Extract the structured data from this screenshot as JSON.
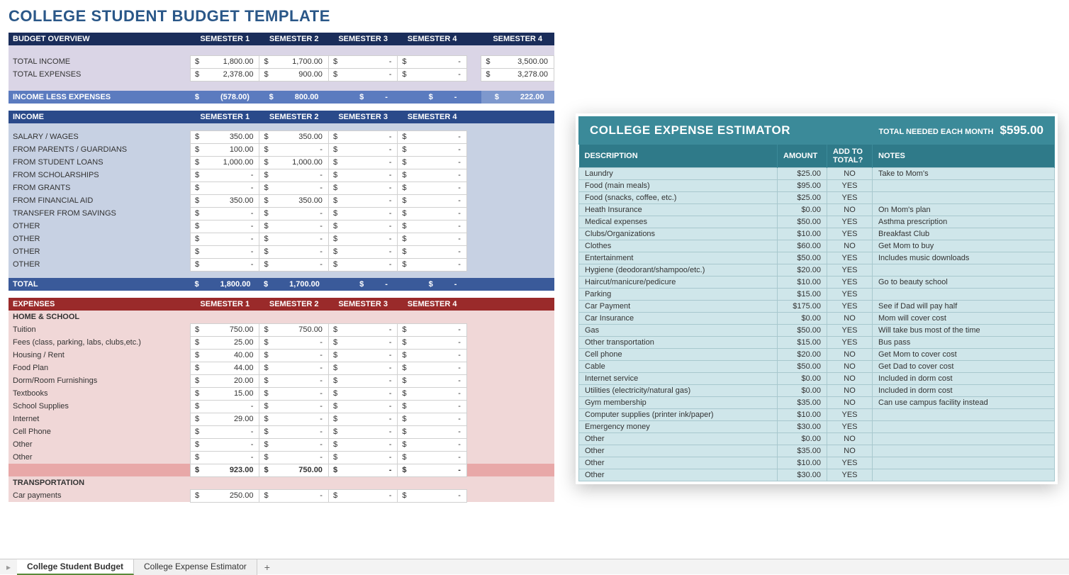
{
  "page_title": "COLLEGE STUDENT BUDGET TEMPLATE",
  "sem_labels": [
    "SEMESTER 1",
    "SEMESTER 2",
    "SEMESTER 3",
    "SEMESTER 4"
  ],
  "overview": {
    "hdr": "BUDGET OVERVIEW",
    "extra_col": "SEMESTER 4",
    "rows": [
      {
        "label": "TOTAL INCOME",
        "vals": [
          "1,800.00",
          "1,700.00",
          "-",
          "-"
        ],
        "ex": "3,500.00"
      },
      {
        "label": "TOTAL EXPENSES",
        "vals": [
          "2,378.00",
          "900.00",
          "-",
          "-"
        ],
        "ex": "3,278.00"
      }
    ],
    "ile": {
      "label": "INCOME LESS EXPENSES",
      "vals": [
        "(578.00)",
        "800.00",
        "-",
        "-"
      ],
      "ex": "222.00"
    }
  },
  "income": {
    "hdr": "INCOME",
    "rows": [
      {
        "label": "SALARY / WAGES",
        "vals": [
          "350.00",
          "350.00",
          "-",
          "-"
        ]
      },
      {
        "label": "FROM PARENTS / GUARDIANS",
        "vals": [
          "100.00",
          "-",
          "-",
          "-"
        ]
      },
      {
        "label": "FROM STUDENT LOANS",
        "vals": [
          "1,000.00",
          "1,000.00",
          "-",
          "-"
        ]
      },
      {
        "label": "FROM SCHOLARSHIPS",
        "vals": [
          "-",
          "-",
          "-",
          "-"
        ]
      },
      {
        "label": "FROM GRANTS",
        "vals": [
          "-",
          "-",
          "-",
          "-"
        ]
      },
      {
        "label": "FROM FINANCIAL AID",
        "vals": [
          "350.00",
          "350.00",
          "-",
          "-"
        ]
      },
      {
        "label": "TRANSFER FROM SAVINGS",
        "vals": [
          "-",
          "-",
          "-",
          "-"
        ]
      },
      {
        "label": "OTHER",
        "vals": [
          "-",
          "-",
          "-",
          "-"
        ]
      },
      {
        "label": "OTHER",
        "vals": [
          "-",
          "-",
          "-",
          "-"
        ]
      },
      {
        "label": "OTHER",
        "vals": [
          "-",
          "-",
          "-",
          "-"
        ]
      },
      {
        "label": "OTHER",
        "vals": [
          "-",
          "-",
          "-",
          "-"
        ]
      }
    ],
    "total": {
      "label": "TOTAL",
      "vals": [
        "1,800.00",
        "1,700.00",
        "-",
        "-"
      ]
    }
  },
  "expenses": {
    "hdr": "EXPENSES",
    "cat1": "HOME & SCHOOL",
    "rows": [
      {
        "label": "Tuition",
        "vals": [
          "750.00",
          "750.00",
          "-",
          "-"
        ]
      },
      {
        "label": "Fees (class, parking, labs, clubs,etc.)",
        "vals": [
          "25.00",
          "-",
          "-",
          "-"
        ]
      },
      {
        "label": "Housing / Rent",
        "vals": [
          "40.00",
          "-",
          "-",
          "-"
        ]
      },
      {
        "label": "Food Plan",
        "vals": [
          "44.00",
          "-",
          "-",
          "-"
        ]
      },
      {
        "label": "Dorm/Room Furnishings",
        "vals": [
          "20.00",
          "-",
          "-",
          "-"
        ]
      },
      {
        "label": "Textbooks",
        "vals": [
          "15.00",
          "-",
          "-",
          "-"
        ]
      },
      {
        "label": "School Supplies",
        "vals": [
          "-",
          "-",
          "-",
          "-"
        ]
      },
      {
        "label": "Internet",
        "vals": [
          "29.00",
          "-",
          "-",
          "-"
        ]
      },
      {
        "label": "Cell Phone",
        "vals": [
          "-",
          "-",
          "-",
          "-"
        ]
      },
      {
        "label": "Other",
        "vals": [
          "-",
          "-",
          "-",
          "-"
        ]
      },
      {
        "label": "Other",
        "vals": [
          "-",
          "-",
          "-",
          "-"
        ]
      }
    ],
    "subtotal": [
      "923.00",
      "750.00",
      "-",
      "-"
    ],
    "cat2": "TRANSPORTATION",
    "rows2": [
      {
        "label": "Car payments",
        "vals": [
          "250.00",
          "-",
          "-",
          "-"
        ]
      }
    ]
  },
  "estimator": {
    "title": "COLLEGE EXPENSE ESTIMATOR",
    "total_label": "TOTAL NEEDED EACH MONTH",
    "total_value": "$595.00",
    "cols": [
      "DESCRIPTION",
      "AMOUNT",
      "ADD TO TOTAL?",
      "NOTES"
    ],
    "rows": [
      {
        "desc": "Laundry",
        "amt": "$25.00",
        "add": "NO",
        "notes": "Take to Mom's"
      },
      {
        "desc": "Food (main meals)",
        "amt": "$95.00",
        "add": "YES",
        "notes": ""
      },
      {
        "desc": "Food (snacks, coffee, etc.)",
        "amt": "$25.00",
        "add": "YES",
        "notes": ""
      },
      {
        "desc": "Heath Insurance",
        "amt": "$0.00",
        "add": "NO",
        "notes": "On Mom's plan"
      },
      {
        "desc": "Medical expenses",
        "amt": "$50.00",
        "add": "YES",
        "notes": "Asthma prescription"
      },
      {
        "desc": "Clubs/Organizations",
        "amt": "$10.00",
        "add": "YES",
        "notes": "Breakfast Club"
      },
      {
        "desc": "Clothes",
        "amt": "$60.00",
        "add": "NO",
        "notes": "Get Mom to buy"
      },
      {
        "desc": "Entertainment",
        "amt": "$50.00",
        "add": "YES",
        "notes": "Includes music downloads"
      },
      {
        "desc": "Hygiene (deodorant/shampoo/etc.)",
        "amt": "$20.00",
        "add": "YES",
        "notes": ""
      },
      {
        "desc": "Haircut/manicure/pedicure",
        "amt": "$10.00",
        "add": "YES",
        "notes": "Go to beauty school"
      },
      {
        "desc": "Parking",
        "amt": "$15.00",
        "add": "YES",
        "notes": ""
      },
      {
        "desc": "Car Payment",
        "amt": "$175.00",
        "add": "YES",
        "notes": "See if Dad will pay half"
      },
      {
        "desc": "Car Insurance",
        "amt": "$0.00",
        "add": "NO",
        "notes": "Mom will cover cost"
      },
      {
        "desc": "Gas",
        "amt": "$50.00",
        "add": "YES",
        "notes": "Will take bus most of the time"
      },
      {
        "desc": "Other transportation",
        "amt": "$15.00",
        "add": "YES",
        "notes": "Bus pass"
      },
      {
        "desc": "Cell phone",
        "amt": "$20.00",
        "add": "NO",
        "notes": "Get Mom to cover cost"
      },
      {
        "desc": "Cable",
        "amt": "$50.00",
        "add": "NO",
        "notes": "Get Dad to cover cost"
      },
      {
        "desc": "Internet service",
        "amt": "$0.00",
        "add": "NO",
        "notes": "Included in dorm cost"
      },
      {
        "desc": "Utilities (electricity/natural gas)",
        "amt": "$0.00",
        "add": "NO",
        "notes": "Included in dorm cost"
      },
      {
        "desc": "Gym membership",
        "amt": "$35.00",
        "add": "NO",
        "notes": "Can use campus facility instead"
      },
      {
        "desc": "Computer supplies (printer ink/paper)",
        "amt": "$10.00",
        "add": "YES",
        "notes": ""
      },
      {
        "desc": "Emergency money",
        "amt": "$30.00",
        "add": "YES",
        "notes": ""
      },
      {
        "desc": "Other",
        "amt": "$0.00",
        "add": "NO",
        "notes": ""
      },
      {
        "desc": "Other",
        "amt": "$35.00",
        "add": "NO",
        "notes": ""
      },
      {
        "desc": "Other",
        "amt": "$10.00",
        "add": "YES",
        "notes": ""
      },
      {
        "desc": "Other",
        "amt": "$30.00",
        "add": "YES",
        "notes": ""
      }
    ]
  },
  "tabs": [
    "College Student Budget",
    "College Expense Estimator"
  ],
  "colors": {
    "navy": "#1a2d5a",
    "blue": "#2a4a8a",
    "bluelight": "#5b7bbf",
    "lav": "#dad5e6",
    "bluebody": "#c7d1e3",
    "red": "#9a2a2a",
    "pink": "#f0d7d7",
    "pinkdark": "#e8a8a8",
    "teal": "#3b8a99",
    "tealdark": "#2f7a89",
    "tealbody": "#cfe6ea"
  }
}
